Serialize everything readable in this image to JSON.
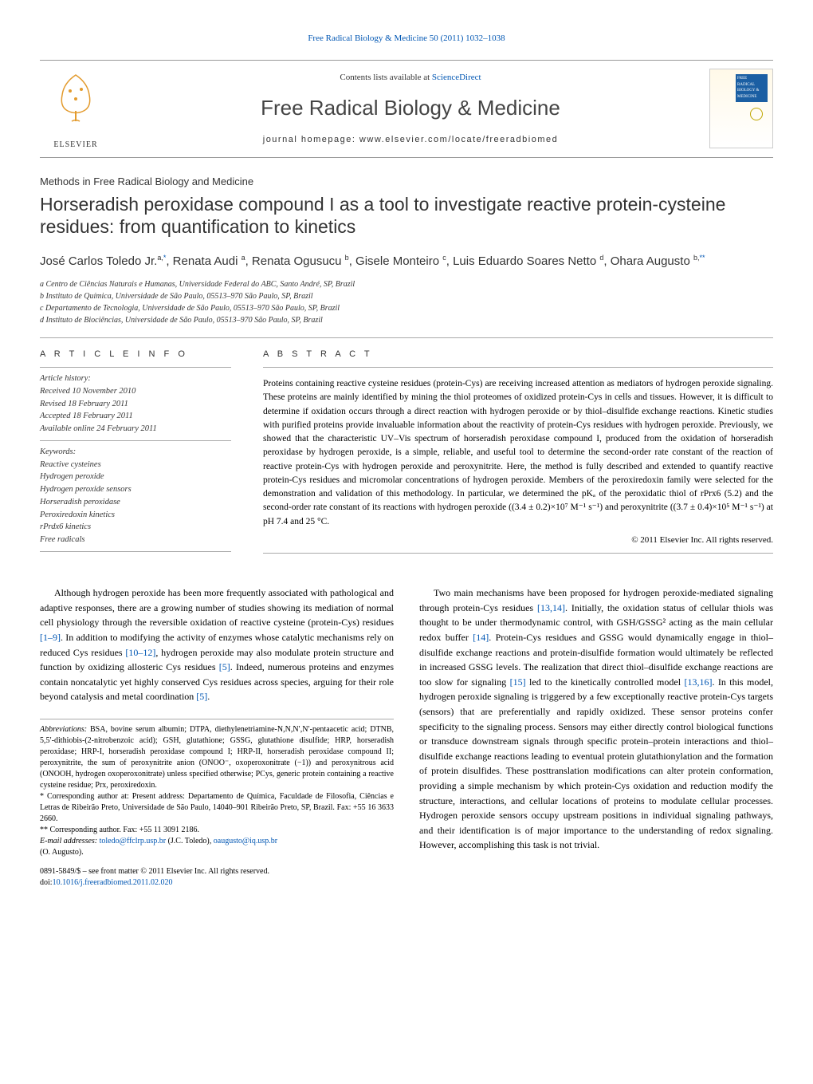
{
  "top_link": "Free Radical Biology & Medicine 50 (2011) 1032–1038",
  "banner": {
    "publisher": "ELSEVIER",
    "contents_prefix": "Contents lists available at ",
    "contents_site": "ScienceDirect",
    "journal": "Free Radical Biology & Medicine",
    "homepage": "journal homepage: www.elsevier.com/locate/freeradbiomed",
    "cover_badge_lines": [
      "FREE",
      "RADICAL",
      "BIOLOGY &",
      "MEDICINE"
    ]
  },
  "section_label": "Methods in Free Radical Biology and Medicine",
  "title": "Horseradish peroxidase compound I as a tool to investigate reactive protein-cysteine residues: from quantification to kinetics",
  "authors_html": "José Carlos Toledo Jr.<sup>a,<span class='star'>*</span></sup>, Renata Audi <sup>a</sup>, Renata Ogusucu <sup>b</sup>, Gisele Monteiro <sup>c</sup>, Luis Eduardo Soares Netto <sup>d</sup>, Ohara Augusto <sup>b,<span class='star'>**</span></sup>",
  "affiliations": [
    "a Centro de Ciências Naturais e Humanas, Universidade Federal do ABC, Santo André, SP, Brazil",
    "b Instituto de Química, Universidade de São Paulo, 05513–970 São Paulo, SP, Brazil",
    "c Departamento de Tecnologia, Universidade de São Paulo, 05513–970 São Paulo, SP, Brazil",
    "d Instituto de Biociências, Universidade de São Paulo, 05513–970 São Paulo, SP, Brazil"
  ],
  "info_heading": "A R T I C L E   I N F O",
  "history": {
    "label": "Article history:",
    "received": "Received 10 November 2010",
    "revised": "Revised 18 February 2011",
    "accepted": "Accepted 18 February 2011",
    "online": "Available online 24 February 2011"
  },
  "keywords": {
    "label": "Keywords:",
    "items": [
      "Reactive cysteines",
      "Hydrogen peroxide",
      "Hydrogen peroxide sensors",
      "Horseradish peroxidase",
      "Peroxiredoxin kinetics",
      "rPrdx6 kinetics",
      "Free radicals"
    ]
  },
  "abstract_heading": "A B S T R A C T",
  "abstract": "Proteins containing reactive cysteine residues (protein-Cys) are receiving increased attention as mediators of hydrogen peroxide signaling. These proteins are mainly identified by mining the thiol proteomes of oxidized protein-Cys in cells and tissues. However, it is difficult to determine if oxidation occurs through a direct reaction with hydrogen peroxide or by thiol–disulfide exchange reactions. Kinetic studies with purified proteins provide invaluable information about the reactivity of protein-Cys residues with hydrogen peroxide. Previously, we showed that the characteristic UV–Vis spectrum of horseradish peroxidase compound I, produced from the oxidation of horseradish peroxidase by hydrogen peroxide, is a simple, reliable, and useful tool to determine the second-order rate constant of the reaction of reactive protein-Cys with hydrogen peroxide and peroxynitrite. Here, the method is fully described and extended to quantify reactive protein-Cys residues and micromolar concentrations of hydrogen peroxide. Members of the peroxiredoxin family were selected for the demonstration and validation of this methodology. In particular, we determined the pKₐ of the peroxidatic thiol of rPrx6 (5.2) and the second-order rate constant of its reactions with hydrogen peroxide ((3.4 ± 0.2)×10⁷ M⁻¹ s⁻¹) and peroxynitrite ((3.7 ± 0.4)×10⁵ M⁻¹ s⁻¹) at pH 7.4 and 25 °C.",
  "copyright": "© 2011 Elsevier Inc. All rights reserved.",
  "body": {
    "left_col": "Although hydrogen peroxide has been more frequently associated with pathological and adaptive responses, there are a growing number of studies showing its mediation of normal cell physiology through the reversible oxidation of reactive cysteine (protein-Cys) residues [1–9]. In addition to modifying the activity of enzymes whose catalytic mechanisms rely on reduced Cys residues [10–12], hydrogen peroxide may also modulate protein structure and function by oxidizing allosteric Cys residues [5]. Indeed, numerous proteins and enzymes contain noncatalytic yet highly conserved Cys residues across species, arguing for their role beyond catalysis and metal coordination [5].",
    "right_col": "Two main mechanisms have been proposed for hydrogen peroxide-mediated signaling through protein-Cys residues [13,14]. Initially, the oxidation status of cellular thiols was thought to be under thermodynamic control, with GSH/GSSG² acting as the main cellular redox buffer [14]. Protein-Cys residues and GSSG would dynamically engage in thiol–disulfide exchange reactions and protein-disulfide formation would ultimately be reflected in increased GSSG levels. The realization that direct thiol–disulfide exchange reactions are too slow for signaling [15] led to the kinetically controlled model [13,16]. In this model, hydrogen peroxide signaling is triggered by a few exceptionally reactive protein-Cys targets (sensors) that are preferentially and rapidly oxidized. These sensor proteins confer specificity to the signaling process. Sensors may either directly control biological functions or transduce downstream signals through specific protein–protein interactions and thiol–disulfide exchange reactions leading to eventual protein glutathionylation and the formation of protein disulfides. These posttranslation modifications can alter protein conformation, providing a simple mechanism by which protein-Cys oxidation and reduction modify the structure, interactions, and cellular locations of proteins to modulate cellular processes. Hydrogen peroxide sensors occupy upstream positions in individual signaling pathways, and their identification is of major importance to the understanding of redox signaling. However, accomplishing this task is not trivial."
  },
  "footnotes": {
    "abbrev_label": "Abbreviations:",
    "abbrev": " BSA, bovine serum albumin; DTPA, diethylenetriamine-N,N,N′,N′-pentaacetic acid; DTNB, 5,5′-dithiobis-(2-nitrobenzoic acid); GSH, glutathione; GSSG, glutathione disulfide; HRP, horseradish peroxidase; HRP-I, horseradish peroxidase compound I; HRP-II, horseradish peroxidase compound II; peroxynitrite, the sum of peroxynitrite anion (ONOO⁻, oxoperoxonitrate (−1)) and peroxynitrous acid (ONOOH, hydrogen oxoperoxonitrate) unless specified otherwise; PCys, generic protein containing a reactive cysteine residue; Prx, peroxiredoxin.",
    "corr1": "* Corresponding author at: Present address: Departamento de Química, Faculdade de Filosofia, Ciências e Letras de Ribeirão Preto, Universidade de São Paulo, 14040–901 Ribeirão Preto, SP, Brazil. Fax: +55 16 3633 2660.",
    "corr2": "** Corresponding author. Fax: +55 11 3091 2186.",
    "email_label": "E-mail addresses: ",
    "email1": "toledo@ffclrp.usp.br",
    "email1_sfx": " (J.C. Toledo), ",
    "email2": "oaugusto@iq.usp.br",
    "email2_sfx": " (O. Augusto)."
  },
  "doi": {
    "line1": "0891-5849/$ – see front matter © 2011 Elsevier Inc. All rights reserved.",
    "line2_prefix": "doi:",
    "line2_link": "10.1016/j.freeradbiomed.2011.02.020"
  },
  "colors": {
    "link": "#0056b3",
    "rule": "#aaaaaa",
    "text": "#000000",
    "heading": "#333333"
  }
}
